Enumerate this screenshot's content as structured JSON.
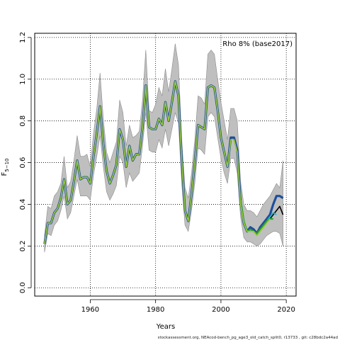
{
  "chart_data": {
    "type": "line",
    "title": "",
    "xlabel": "Years",
    "ylabel": "F",
    "ylabel_subscript": "5−10",
    "xlim": [
      1943,
      2023
    ],
    "ylim": [
      -0.04,
      1.22
    ],
    "xticks": [
      1960,
      1980,
      2000,
      2020
    ],
    "yticks": [
      0.0,
      0.2,
      0.4,
      0.6,
      0.8,
      1.0,
      1.2
    ],
    "xtick_labels": [
      "1960",
      "1980",
      "2000",
      "2020"
    ],
    "ytick_labels": [
      "0.0",
      "0.2",
      "0.4",
      "0.6",
      "0.8",
      "1.0",
      "1.2"
    ],
    "grid": true,
    "annotation": "Rho 8% (base2017)",
    "footer": "stockassessment.org, NEAcod-bench_pg_age3_old_catch_split0, r13733 , git: c28bdc2a44ad",
    "colors": {
      "band": "#bfbfbf",
      "band_edge": "#8c8c8c",
      "base": "#1f4e9c",
      "peel1": "#000000",
      "peel2": "#17becf",
      "peel3": "#2ca02c",
      "peel4": "#9acd32"
    },
    "band": {
      "x": [
        1946,
        1947,
        1948,
        1949,
        1950,
        1951,
        1952,
        1953,
        1954,
        1955,
        1956,
        1957,
        1958,
        1959,
        1960,
        1961,
        1962,
        1963,
        1964,
        1965,
        1966,
        1967,
        1968,
        1969,
        1970,
        1971,
        1972,
        1973,
        1974,
        1975,
        1976,
        1977,
        1978,
        1979,
        1980,
        1981,
        1982,
        1983,
        1984,
        1985,
        1986,
        1987,
        1988,
        1989,
        1990,
        1991,
        1992,
        1993,
        1994,
        1995,
        1996,
        1997,
        1998,
        1999,
        2000,
        2001,
        2002,
        2003,
        2004,
        2005,
        2006,
        2007,
        2008,
        2009,
        2010,
        2011,
        2012,
        2013,
        2014,
        2015,
        2016,
        2017,
        2018,
        2019
      ],
      "upper": [
        0.25,
        0.39,
        0.38,
        0.44,
        0.46,
        0.5,
        0.63,
        0.48,
        0.51,
        0.61,
        0.73,
        0.63,
        0.63,
        0.64,
        0.58,
        0.74,
        0.86,
        1.03,
        0.81,
        0.65,
        0.6,
        0.65,
        0.7,
        0.9,
        0.84,
        0.68,
        0.78,
        0.72,
        0.73,
        0.75,
        0.9,
        1.14,
        0.85,
        0.84,
        0.88,
        0.96,
        0.92,
        1.05,
        0.94,
        1.05,
        1.17,
        1.07,
        0.71,
        0.48,
        0.43,
        0.55,
        0.71,
        0.92,
        0.91,
        0.88,
        1.12,
        1.14,
        1.12,
        1.0,
        0.89,
        0.8,
        0.71,
        0.86,
        0.86,
        0.8,
        0.51,
        0.4,
        0.37,
        0.37,
        0.36,
        0.34,
        0.37,
        0.4,
        0.42,
        0.44,
        0.47,
        0.5,
        0.48,
        0.61
      ],
      "lower": [
        0.17,
        0.26,
        0.25,
        0.3,
        0.32,
        0.37,
        0.44,
        0.33,
        0.36,
        0.44,
        0.52,
        0.44,
        0.44,
        0.44,
        0.42,
        0.54,
        0.63,
        0.73,
        0.58,
        0.46,
        0.42,
        0.45,
        0.49,
        0.63,
        0.6,
        0.48,
        0.55,
        0.51,
        0.53,
        0.55,
        0.68,
        0.84,
        0.66,
        0.65,
        0.65,
        0.71,
        0.67,
        0.76,
        0.68,
        0.76,
        0.84,
        0.79,
        0.5,
        0.3,
        0.27,
        0.37,
        0.5,
        0.67,
        0.66,
        0.64,
        0.82,
        0.84,
        0.82,
        0.72,
        0.62,
        0.55,
        0.5,
        0.62,
        0.62,
        0.55,
        0.34,
        0.24,
        0.22,
        0.22,
        0.21,
        0.2,
        0.21,
        0.23,
        0.25,
        0.26,
        0.27,
        0.27,
        0.26,
        0.2
      ]
    },
    "series": [
      {
        "key": "base",
        "x": [
          1946,
          1947,
          1948,
          1949,
          1950,
          1951,
          1952,
          1953,
          1954,
          1955,
          1956,
          1957,
          1958,
          1959,
          1960,
          1961,
          1962,
          1963,
          1964,
          1965,
          1966,
          1967,
          1968,
          1969,
          1970,
          1971,
          1972,
          1973,
          1974,
          1975,
          1976,
          1977,
          1978,
          1979,
          1980,
          1981,
          1982,
          1983,
          1984,
          1985,
          1986,
          1987,
          1988,
          1989,
          1990,
          1991,
          1992,
          1993,
          1994,
          1995,
          1996,
          1997,
          1998,
          1999,
          2000,
          2001,
          2002,
          2003,
          2004,
          2005,
          2006,
          2007,
          2008,
          2009,
          2010,
          2011,
          2012,
          2013,
          2014,
          2015,
          2016,
          2017,
          2018,
          2019
        ],
        "values": [
          0.21,
          0.31,
          0.31,
          0.36,
          0.38,
          0.43,
          0.52,
          0.4,
          0.42,
          0.51,
          0.61,
          0.52,
          0.53,
          0.53,
          0.5,
          0.63,
          0.74,
          0.87,
          0.69,
          0.56,
          0.5,
          0.54,
          0.59,
          0.76,
          0.71,
          0.58,
          0.68,
          0.61,
          0.64,
          0.64,
          0.77,
          0.97,
          0.77,
          0.76,
          0.76,
          0.81,
          0.78,
          0.89,
          0.8,
          0.89,
          0.99,
          0.92,
          0.61,
          0.37,
          0.32,
          0.45,
          0.6,
          0.78,
          0.77,
          0.76,
          0.96,
          0.97,
          0.96,
          0.85,
          0.72,
          0.65,
          0.58,
          0.72,
          0.72,
          0.66,
          0.41,
          0.31,
          0.27,
          0.29,
          0.28,
          0.26,
          0.29,
          0.31,
          0.33,
          0.35,
          0.4,
          0.44,
          0.44,
          0.43
        ]
      },
      {
        "key": "peel1",
        "x": [
          2013,
          2014,
          2015,
          2016,
          2017,
          2018,
          2019
        ],
        "values": [
          0.3,
          0.32,
          0.33,
          0.35,
          0.37,
          0.39,
          0.35
        ]
      },
      {
        "key": "peel2",
        "x": [
          2012,
          2013,
          2014,
          2015,
          2016,
          2017
        ],
        "values": [
          0.28,
          0.3,
          0.32,
          0.34,
          0.36,
          0.35
        ]
      },
      {
        "key": "peel3",
        "x": [
          2006,
          2007,
          2008,
          2009,
          2010,
          2011,
          2012,
          2013,
          2014,
          2015,
          2016
        ],
        "values": [
          0.42,
          0.32,
          0.27,
          0.28,
          0.27,
          0.26,
          0.28,
          0.3,
          0.32,
          0.33,
          0.33
        ]
      },
      {
        "key": "peel4",
        "x": [
          1946,
          1947,
          1948,
          1949,
          1950,
          1951,
          1952,
          1953,
          1954,
          1955,
          1956,
          1957,
          1958,
          1959,
          1960,
          1961,
          1962,
          1963,
          1964,
          1965,
          1966,
          1967,
          1968,
          1969,
          1970,
          1971,
          1972,
          1973,
          1974,
          1975,
          1976,
          1977,
          1978,
          1979,
          1980,
          1981,
          1982,
          1983,
          1984,
          1985,
          1986,
          1987,
          1988,
          1989,
          1990,
          1991,
          1992,
          1993,
          1994,
          1995,
          1996,
          1997,
          1998,
          1999,
          2000,
          2001,
          2002,
          2003,
          2004,
          2005,
          2006,
          2007,
          2008,
          2009,
          2010,
          2011,
          2012,
          2013,
          2014,
          2015
        ],
        "values": [
          0.21,
          0.31,
          0.31,
          0.36,
          0.38,
          0.43,
          0.52,
          0.4,
          0.42,
          0.51,
          0.61,
          0.52,
          0.53,
          0.53,
          0.5,
          0.63,
          0.74,
          0.87,
          0.69,
          0.56,
          0.5,
          0.54,
          0.59,
          0.76,
          0.71,
          0.58,
          0.68,
          0.61,
          0.64,
          0.64,
          0.77,
          0.97,
          0.77,
          0.76,
          0.76,
          0.81,
          0.78,
          0.89,
          0.8,
          0.89,
          0.99,
          0.92,
          0.61,
          0.37,
          0.32,
          0.45,
          0.6,
          0.78,
          0.77,
          0.76,
          0.96,
          0.97,
          0.96,
          0.85,
          0.72,
          0.65,
          0.58,
          0.71,
          0.71,
          0.65,
          0.4,
          0.31,
          0.27,
          0.27,
          0.27,
          0.25,
          0.27,
          0.29,
          0.31,
          0.33
        ]
      }
    ]
  }
}
